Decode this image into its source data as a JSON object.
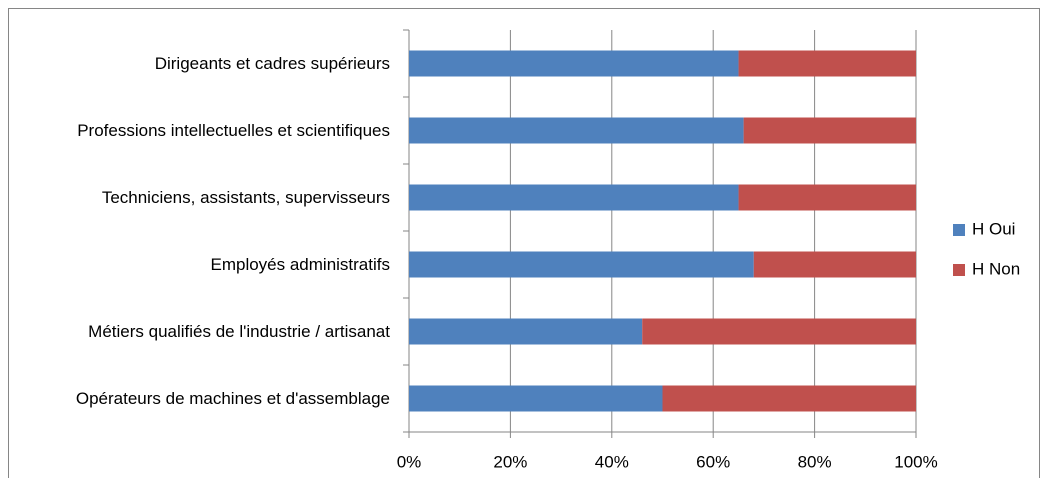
{
  "chart_data": {
    "type": "stacked_bar_horizontal",
    "categories": [
      "Dirigeants et cadres supérieurs",
      "Professions intellectuelles et scientifiques",
      "Techniciens, assistants, supervisseurs",
      "Employés administratifs",
      "Métiers qualifiés de l'industrie / artisanat",
      "Opérateurs de machines et d'assemblage"
    ],
    "series": [
      {
        "name": "H Oui",
        "color": "#4f81bd",
        "values": [
          65,
          66,
          65,
          68,
          46,
          50
        ]
      },
      {
        "name": "H Non",
        "color": "#c0504d",
        "values": [
          35,
          34,
          35,
          32,
          54,
          50
        ]
      }
    ],
    "xlim": [
      0,
      100
    ],
    "xticks": [
      {
        "value": 0,
        "label": "0%"
      },
      {
        "value": 20,
        "label": "20%"
      },
      {
        "value": 40,
        "label": "40%"
      },
      {
        "value": 60,
        "label": "60%"
      },
      {
        "value": 80,
        "label": "80%"
      },
      {
        "value": 100,
        "label": "100%"
      }
    ],
    "grid": true,
    "legend": "right"
  }
}
